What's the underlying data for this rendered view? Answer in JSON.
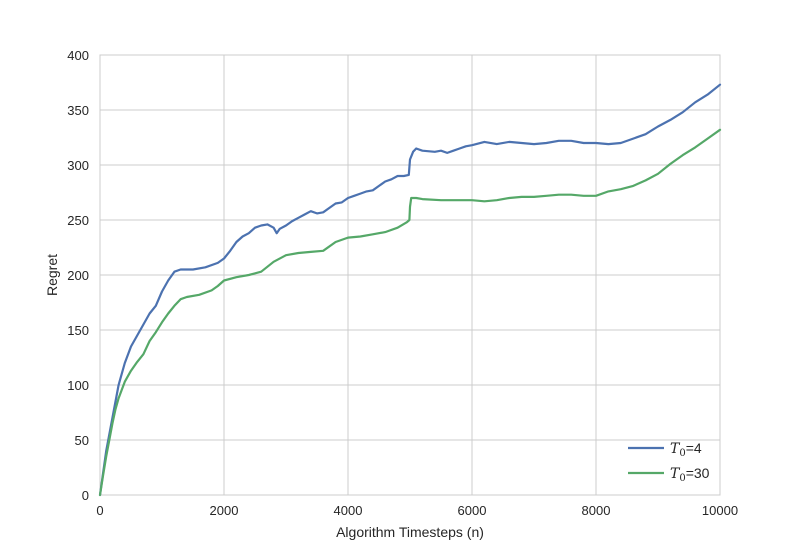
{
  "chart_data": {
    "type": "line",
    "title": "",
    "xlabel": "Algorithm Timesteps (n)",
    "ylabel": "Regret",
    "xlim": [
      0,
      10000
    ],
    "ylim": [
      0,
      400
    ],
    "xticks": [
      0,
      2000,
      4000,
      6000,
      8000,
      10000
    ],
    "yticks": [
      0,
      50,
      100,
      150,
      200,
      250,
      300,
      350,
      400
    ],
    "xtick_labels": [
      "0",
      "2000",
      "4000",
      "6000",
      "8000",
      "10000"
    ],
    "ytick_labels": [
      "0",
      "50",
      "100",
      "150",
      "200",
      "250",
      "300",
      "350",
      "400"
    ],
    "grid": true,
    "legend_position": "bottom-right",
    "series": [
      {
        "name": "T0=4",
        "legend_symbol": "T",
        "legend_sub": "0",
        "legend_value": "=4",
        "color": "#4c72b0",
        "points": [
          [
            0,
            0
          ],
          [
            50,
            20
          ],
          [
            100,
            40
          ],
          [
            150,
            55
          ],
          [
            200,
            70
          ],
          [
            250,
            85
          ],
          [
            300,
            100
          ],
          [
            400,
            120
          ],
          [
            500,
            135
          ],
          [
            600,
            145
          ],
          [
            700,
            155
          ],
          [
            800,
            165
          ],
          [
            900,
            172
          ],
          [
            1000,
            185
          ],
          [
            1100,
            195
          ],
          [
            1200,
            203
          ],
          [
            1300,
            205
          ],
          [
            1500,
            205
          ],
          [
            1700,
            207
          ],
          [
            1900,
            211
          ],
          [
            2000,
            215
          ],
          [
            2100,
            222
          ],
          [
            2200,
            230
          ],
          [
            2300,
            235
          ],
          [
            2400,
            238
          ],
          [
            2500,
            243
          ],
          [
            2600,
            245
          ],
          [
            2700,
            246
          ],
          [
            2800,
            243
          ],
          [
            2850,
            238
          ],
          [
            2900,
            242
          ],
          [
            3000,
            245
          ],
          [
            3100,
            249
          ],
          [
            3200,
            252
          ],
          [
            3300,
            255
          ],
          [
            3400,
            258
          ],
          [
            3500,
            256
          ],
          [
            3600,
            257
          ],
          [
            3700,
            261
          ],
          [
            3800,
            265
          ],
          [
            3900,
            266
          ],
          [
            4000,
            270
          ],
          [
            4100,
            272
          ],
          [
            4200,
            274
          ],
          [
            4300,
            276
          ],
          [
            4400,
            277
          ],
          [
            4500,
            281
          ],
          [
            4600,
            285
          ],
          [
            4700,
            287
          ],
          [
            4800,
            290
          ],
          [
            4900,
            290
          ],
          [
            4980,
            291
          ],
          [
            5000,
            305
          ],
          [
            5050,
            312
          ],
          [
            5100,
            315
          ],
          [
            5200,
            313
          ],
          [
            5400,
            312
          ],
          [
            5500,
            313
          ],
          [
            5600,
            311
          ],
          [
            5700,
            313
          ],
          [
            5800,
            315
          ],
          [
            5900,
            317
          ],
          [
            6000,
            318
          ],
          [
            6200,
            321
          ],
          [
            6400,
            319
          ],
          [
            6600,
            321
          ],
          [
            6800,
            320
          ],
          [
            7000,
            319
          ],
          [
            7200,
            320
          ],
          [
            7400,
            322
          ],
          [
            7600,
            322
          ],
          [
            7800,
            320
          ],
          [
            8000,
            320
          ],
          [
            8200,
            319
          ],
          [
            8400,
            320
          ],
          [
            8600,
            324
          ],
          [
            8800,
            328
          ],
          [
            9000,
            335
          ],
          [
            9200,
            341
          ],
          [
            9400,
            348
          ],
          [
            9600,
            357
          ],
          [
            9800,
            364
          ],
          [
            10000,
            373
          ]
        ]
      },
      {
        "name": "T0=30",
        "legend_symbol": "T",
        "legend_sub": "0",
        "legend_value": "=30",
        "color": "#55a868",
        "points": [
          [
            0,
            0
          ],
          [
            50,
            18
          ],
          [
            100,
            35
          ],
          [
            150,
            50
          ],
          [
            200,
            65
          ],
          [
            250,
            78
          ],
          [
            300,
            88
          ],
          [
            400,
            103
          ],
          [
            500,
            113
          ],
          [
            600,
            121
          ],
          [
            700,
            128
          ],
          [
            800,
            140
          ],
          [
            900,
            148
          ],
          [
            1000,
            157
          ],
          [
            1100,
            165
          ],
          [
            1200,
            172
          ],
          [
            1300,
            178
          ],
          [
            1400,
            180
          ],
          [
            1600,
            182
          ],
          [
            1800,
            186
          ],
          [
            1900,
            190
          ],
          [
            2000,
            195
          ],
          [
            2200,
            198
          ],
          [
            2400,
            200
          ],
          [
            2600,
            203
          ],
          [
            2800,
            212
          ],
          [
            3000,
            218
          ],
          [
            3200,
            220
          ],
          [
            3400,
            221
          ],
          [
            3600,
            222
          ],
          [
            3800,
            230
          ],
          [
            4000,
            234
          ],
          [
            4200,
            235
          ],
          [
            4400,
            237
          ],
          [
            4600,
            239
          ],
          [
            4800,
            243
          ],
          [
            4950,
            248
          ],
          [
            4990,
            250
          ],
          [
            5000,
            262
          ],
          [
            5020,
            270
          ],
          [
            5100,
            270
          ],
          [
            5200,
            269
          ],
          [
            5500,
            268
          ],
          [
            5800,
            268
          ],
          [
            6000,
            268
          ],
          [
            6200,
            267
          ],
          [
            6400,
            268
          ],
          [
            6600,
            270
          ],
          [
            6800,
            271
          ],
          [
            7000,
            271
          ],
          [
            7200,
            272
          ],
          [
            7400,
            273
          ],
          [
            7600,
            273
          ],
          [
            7800,
            272
          ],
          [
            8000,
            272
          ],
          [
            8200,
            276
          ],
          [
            8400,
            278
          ],
          [
            8600,
            281
          ],
          [
            8800,
            286
          ],
          [
            9000,
            292
          ],
          [
            9200,
            301
          ],
          [
            9400,
            309
          ],
          [
            9600,
            316
          ],
          [
            9800,
            324
          ],
          [
            10000,
            332
          ]
        ]
      }
    ]
  }
}
